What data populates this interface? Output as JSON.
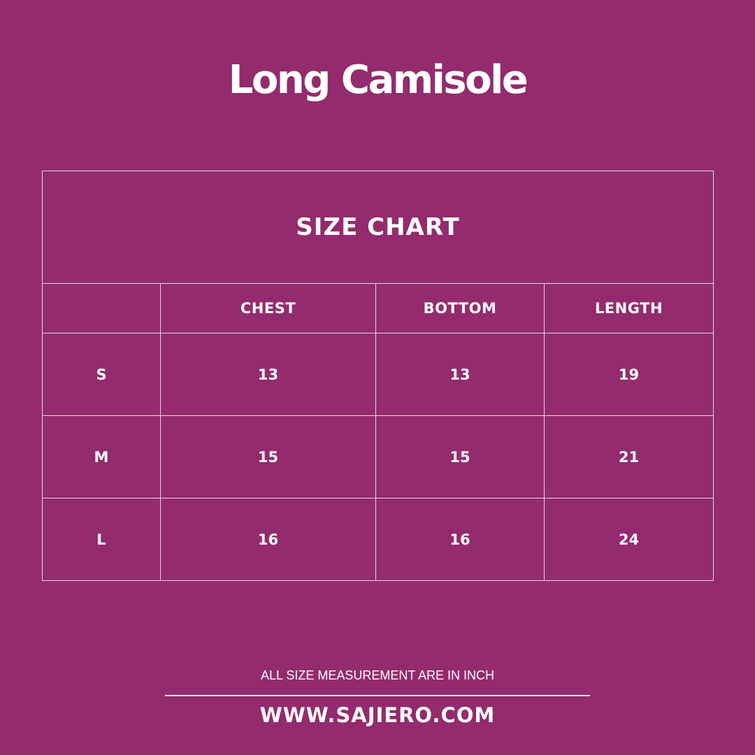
{
  "title": "Long Camisole",
  "table": {
    "heading": "SIZE CHART",
    "columns": [
      "",
      "CHEST",
      "BOTTOM",
      "LENGTH"
    ],
    "rows": [
      {
        "size": "S",
        "chest": "13",
        "bottom": "13",
        "length": "19"
      },
      {
        "size": "M",
        "chest": "15",
        "bottom": "15",
        "length": "21"
      },
      {
        "size": "L",
        "chest": "16",
        "bottom": "16",
        "length": "24"
      }
    ]
  },
  "footer": {
    "note": "ALL SIZE MEASUREMENT ARE IN INCH",
    "website": "WWW.SAJIERO.COM"
  },
  "colors": {
    "background": "#932B6E",
    "text": "#FFFFFF"
  }
}
